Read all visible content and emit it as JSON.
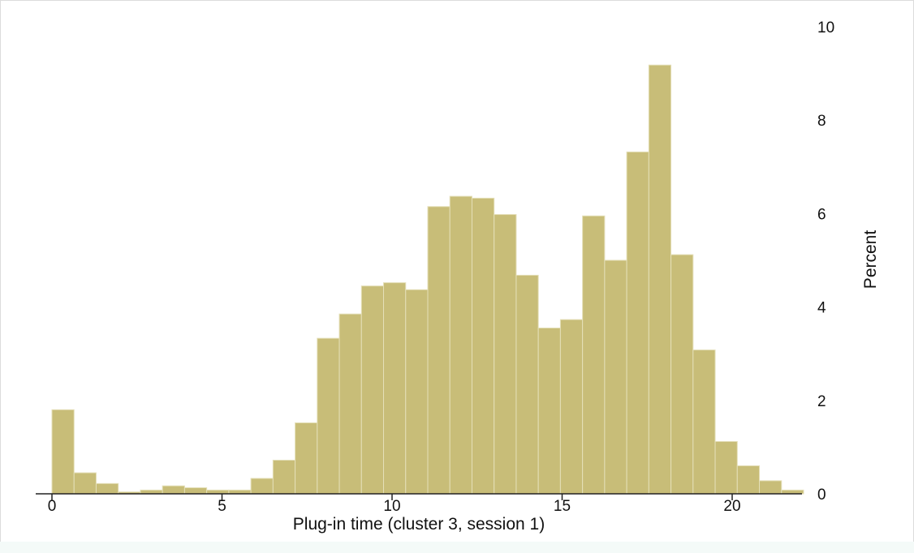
{
  "chart_data": {
    "type": "bar",
    "title": "",
    "xlabel": "Plug-in time (cluster 3, session 1)",
    "ylabel": "Percent",
    "x_bins": [
      {
        "start": 0.0,
        "end": 0.65,
        "value": 1.8
      },
      {
        "start": 0.65,
        "end": 1.3,
        "value": 0.45
      },
      {
        "start": 1.3,
        "end": 1.95,
        "value": 0.22
      },
      {
        "start": 1.95,
        "end": 2.6,
        "value": 0.04
      },
      {
        "start": 2.6,
        "end": 3.25,
        "value": 0.08
      },
      {
        "start": 3.25,
        "end": 3.9,
        "value": 0.17
      },
      {
        "start": 3.9,
        "end": 4.55,
        "value": 0.13
      },
      {
        "start": 4.55,
        "end": 5.2,
        "value": 0.08
      },
      {
        "start": 5.2,
        "end": 5.85,
        "value": 0.08
      },
      {
        "start": 5.85,
        "end": 6.5,
        "value": 0.33
      },
      {
        "start": 6.5,
        "end": 7.15,
        "value": 0.72
      },
      {
        "start": 7.15,
        "end": 7.8,
        "value": 1.52
      },
      {
        "start": 7.8,
        "end": 8.45,
        "value": 3.33
      },
      {
        "start": 8.45,
        "end": 9.1,
        "value": 3.85
      },
      {
        "start": 9.1,
        "end": 9.75,
        "value": 4.45
      },
      {
        "start": 9.75,
        "end": 10.4,
        "value": 4.52
      },
      {
        "start": 10.4,
        "end": 11.05,
        "value": 4.37
      },
      {
        "start": 11.05,
        "end": 11.7,
        "value": 6.15
      },
      {
        "start": 11.7,
        "end": 12.35,
        "value": 6.37
      },
      {
        "start": 12.35,
        "end": 13.0,
        "value": 6.33
      },
      {
        "start": 13.0,
        "end": 13.65,
        "value": 5.98
      },
      {
        "start": 13.65,
        "end": 14.3,
        "value": 4.68
      },
      {
        "start": 14.3,
        "end": 14.95,
        "value": 3.55
      },
      {
        "start": 14.95,
        "end": 15.6,
        "value": 3.73
      },
      {
        "start": 15.6,
        "end": 16.25,
        "value": 5.95
      },
      {
        "start": 16.25,
        "end": 16.9,
        "value": 5.0
      },
      {
        "start": 16.9,
        "end": 17.55,
        "value": 7.32
      },
      {
        "start": 17.55,
        "end": 18.2,
        "value": 9.18
      },
      {
        "start": 18.2,
        "end": 18.85,
        "value": 5.12
      },
      {
        "start": 18.85,
        "end": 19.5,
        "value": 3.08
      },
      {
        "start": 19.5,
        "end": 20.15,
        "value": 1.12
      },
      {
        "start": 20.15,
        "end": 20.8,
        "value": 0.6
      },
      {
        "start": 20.8,
        "end": 21.45,
        "value": 0.28
      },
      {
        "start": 21.45,
        "end": 22.1,
        "value": 0.08
      }
    ],
    "xlim": [
      -0.45,
      22.4
    ],
    "ylim": [
      0,
      10
    ],
    "x_ticks": [
      "0",
      "5",
      "10",
      "15",
      "20"
    ],
    "y_ticks": [
      "0",
      "2",
      "4",
      "6",
      "8",
      "10"
    ],
    "y_axis_side": "right",
    "grid": false,
    "bar_color": "#c8bd78"
  }
}
